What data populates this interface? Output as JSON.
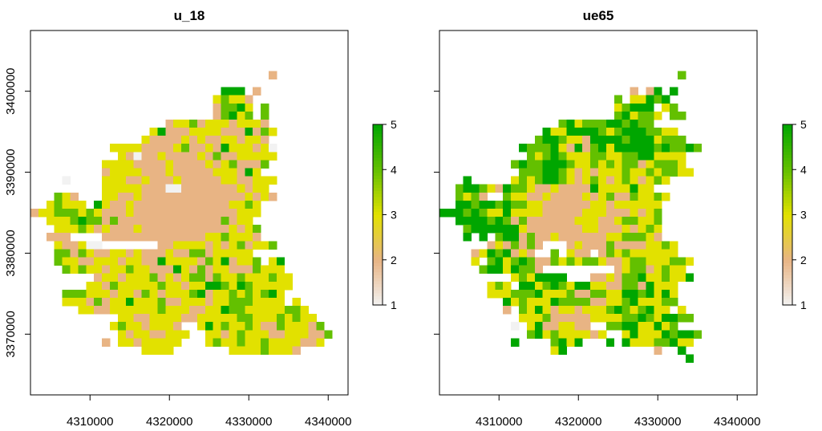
{
  "palette": {
    "1": "#f2f2f2",
    "2": "#e8b484",
    "3": "#e2e100",
    "4": "#63c000",
    "5": "#00a600"
  },
  "chart_data": [
    {
      "type": "heatmap",
      "title": "u_18",
      "xlabel": "",
      "ylabel": "",
      "xlim": [
        4302500,
        4342500
      ],
      "ylim": [
        3362500,
        3407500
      ],
      "xticks": [
        "4310000",
        "4320000",
        "4330000",
        "4340000"
      ],
      "yticks": [
        "3370000",
        "3380000",
        "3390000",
        "3400000"
      ],
      "cell_size": 1000,
      "legend": {
        "ticks": [
          "1",
          "2",
          "3",
          "4",
          "5"
        ],
        "range": [
          1,
          5
        ],
        "placement": "right"
      },
      "grid_origin": [
        4303000,
        3402000
      ],
      "rows": [
        "..............................2..........",
        ".....................................",
        "........................555.2...........",
        ".......................34332............",
        ".......................24453.4..........",
        ".......................24534.4..........",
        ".................2334233323332..........",
        "...............3522233332225243.........",
        "..............3222232322332332..........",
        "..........333322223422325333231.........",
        "...........32122322223242233333.........",
        ".........333322223222232342224...........",
        ".........23333222322222333253...........",
        "....1....3332232223222223322333.........",
        ".........333332221122222223233..........",
        "...432...3322322222222222223232.........",
        "..34333.532232222222222223343...........",
        "23344434322232222222222222333...........",
        "..33345442422222222222224233............",
        "...33343232223222222222223234...........",
        "..222....22222222222223343332...........",
        "...322311.......223333232342334.........",
        "...4424322332322232244233333...........",
        "...43322333233225333324352334.35........",
        "....4343323343322253242332224333........",
        "........2332333423234424334333433.......",
        ".......33243333343323355435433333.......",
        "....4443332332432333452334343453........",
        "....3332423353334223332334443333.3......",
        "......33223333334333223354433333443.....",
        "...........3322333322333334433343433....",
        "..........343323332..3534334322433324...",
        "...........323322333..3323433322333224..",
        ".........2.33233333...343343343333223...",
        "..............3333.......333343332......",
        "......................................."
      ]
    },
    {
      "type": "heatmap",
      "title": "ue65",
      "xlabel": "",
      "ylabel": "",
      "xlim": [
        4302500,
        4342500
      ],
      "ylim": [
        3362500,
        3407500
      ],
      "xticks": [
        "4310000",
        "4320000",
        "4330000",
        "4340000"
      ],
      "yticks": [
        "3370000",
        "3380000",
        "3390000",
        "3400000"
      ],
      "cell_size": 1000,
      "legend": {
        "ticks": [
          "1",
          "2",
          "3",
          "4",
          "5"
        ],
        "range": [
          1,
          5
        ],
        "placement": "right"
      },
      "grid_origin": [
        4303000,
        3402000
      ],
      "rows": [
        "..............................4..........",
        ".....................................",
        "........................2.25.5..........",
        "......................4.33545...........",
        "......................34555.34..........",
        "......................453443.44.........",
        "...............453444554544.............",
        ".............53355554345554433..........",
        "............4554332555545553444.........",
        "..........54445325245355555454454.......",
        "...........43454333443344553333.........",
        ".........4544555433434344234443..........",
        "..........4445543232333433434433........",
        "...5.....34345543234323432343...........",
        "..4554325443223222253333533.............",
        "..4342..433223222232342243343...........",
        "..55455454433222222332333333............",
        "5554543353333222223332223234............",
        "..55554542422222233322344334............",
        "...4555555322222223322232343............",
        "...5.5.455242232222223344432............",
        "......2324242...23222422223343..........",
        "....23545232..4.322.2434333333..........",
        "....3.45345422434344322344333443........",
        ".....45535442.........234423433.........",
        ".........3435555...2232445334335........",
        "......343.55345435533224425333..........",
        "......333444533342244335545353..........",
        "........5343335444422334533344..........",
        "........2.4353233233345434533.3.........",
        "..........3334222223333445435544.......",
        ".........1.35223322..445533534..........",
        "...........4534333323..3533354554.......",
        ".........5....4535...5.533344533........",
        "..............35...........2..5.........",
        "...............................5........"
      ]
    }
  ]
}
